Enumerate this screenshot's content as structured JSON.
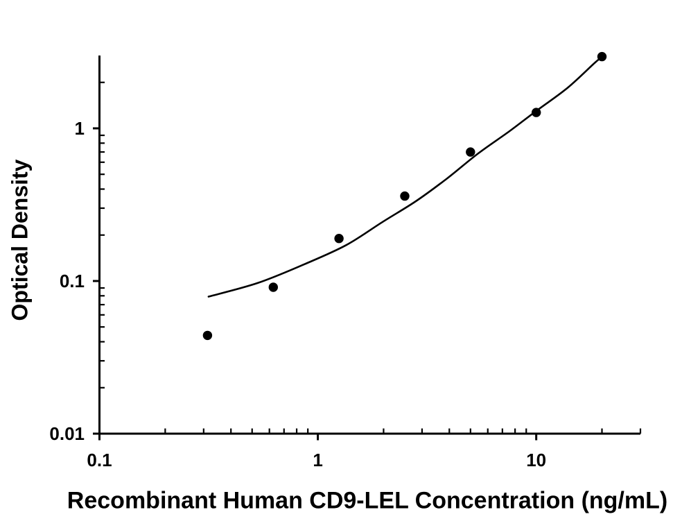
{
  "figure": {
    "background": "#ffffff",
    "ink_color": "#000000"
  },
  "chart_data": {
    "type": "scatter",
    "title": "",
    "xlabel": "Recombinant Human CD9-LEL Concentration (ng/mL)",
    "ylabel": "Optical Density",
    "x_scale": "log",
    "y_scale": "log",
    "xlim": [
      0.1,
      30
    ],
    "ylim": [
      0.01,
      3
    ],
    "grid": false,
    "legend": false,
    "x_major_ticks": [
      {
        "value": 0.1,
        "label": "0.1"
      },
      {
        "value": 1,
        "label": "1"
      },
      {
        "value": 10,
        "label": "10"
      }
    ],
    "y_major_ticks": [
      {
        "value": 0.01,
        "label": "0.01"
      },
      {
        "value": 0.1,
        "label": "0.1"
      },
      {
        "value": 1,
        "label": "1"
      }
    ],
    "x_minor_ticks": [
      0.2,
      0.3,
      0.4,
      0.5,
      0.6,
      0.7,
      0.8,
      0.9,
      2,
      3,
      4,
      5,
      6,
      7,
      8,
      9,
      20,
      30
    ],
    "y_minor_ticks": [
      0.02,
      0.03,
      0.04,
      0.05,
      0.06,
      0.07,
      0.08,
      0.09,
      0.2,
      0.3,
      0.4,
      0.5,
      0.6,
      0.7,
      0.8,
      0.9,
      2
    ],
    "series": [
      {
        "name": "standard-points",
        "type": "scatter",
        "marker": "filled-circle",
        "color": "#000000",
        "points": [
          [
            0.3125,
            0.044
          ],
          [
            0.625,
            0.091
          ],
          [
            1.25,
            0.19
          ],
          [
            2.5,
            0.36
          ],
          [
            5,
            0.7
          ],
          [
            10,
            1.27
          ],
          [
            20,
            2.95
          ]
        ]
      },
      {
        "name": "4pl-fit-curve",
        "type": "line",
        "color": "#000000",
        "points": [
          [
            0.316,
            0.079
          ],
          [
            0.53,
            0.097
          ],
          [
            0.87,
            0.129
          ],
          [
            1.35,
            0.172
          ],
          [
            1.98,
            0.244
          ],
          [
            2.81,
            0.333
          ],
          [
            3.91,
            0.47
          ],
          [
            5.43,
            0.686
          ],
          [
            7.55,
            0.959
          ],
          [
            10.0,
            1.3
          ],
          [
            13.9,
            1.84
          ],
          [
            18.6,
            2.7
          ],
          [
            20.0,
            2.92
          ]
        ]
      }
    ]
  }
}
